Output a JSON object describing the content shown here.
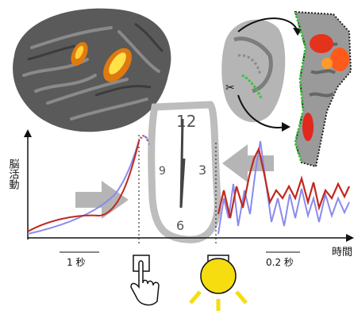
{
  "labels": {
    "y_axis": "脳活動",
    "x_axis": "時間",
    "scale_left": "1 秒",
    "scale_right": "0.2 秒"
  }
}
